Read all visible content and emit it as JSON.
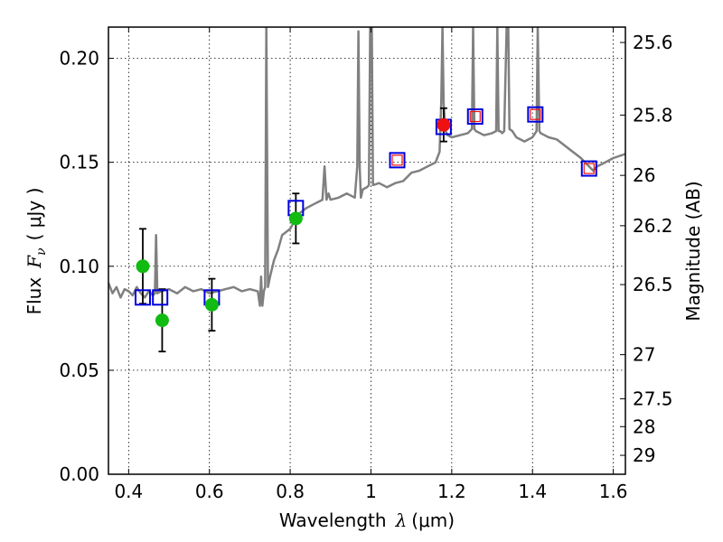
{
  "chart_data": {
    "type": "scatter",
    "xlabel_prefix": "Wavelength",
    "xlabel_symbol": "λ",
    "xlabel_unit": "(μm)",
    "ylabel_prefix": "Flux",
    "ylabel_symbol": "F",
    "ylabel_sub": "ν",
    "ylabel_unit": "( μJy )",
    "y2label": "Magnitude (AB)",
    "xlim": [
      0.35,
      1.63
    ],
    "ylim": [
      0.0,
      0.215
    ],
    "grid": true,
    "x_ticks": [
      0.4,
      0.6,
      0.8,
      1.0,
      1.2,
      1.4,
      1.6
    ],
    "x_tick_labels": [
      "0.4",
      "0.6",
      "0.8",
      "1",
      "1.2",
      "1.4",
      "1.6"
    ],
    "y_ticks": [
      0.0,
      0.05,
      0.1,
      0.15,
      0.2
    ],
    "y_tick_labels": [
      "0.00",
      "0.05",
      "0.10",
      "0.15",
      "0.20"
    ],
    "y2_ticks": [
      {
        "label": "25.6",
        "flux": 0.2076
      },
      {
        "label": "25.8",
        "flux": 0.1727
      },
      {
        "label": "26",
        "flux": 0.1437
      },
      {
        "label": "26.2",
        "flux": 0.1195
      },
      {
        "label": "26.5",
        "flux": 0.0912
      },
      {
        "label": "27",
        "flux": 0.0575
      },
      {
        "label": "27.5",
        "flux": 0.0363
      },
      {
        "label": "28",
        "flux": 0.0229
      },
      {
        "label": "29",
        "flux": 0.0091
      }
    ],
    "series": [
      {
        "name": "SED model",
        "kind": "line",
        "color": "#808080",
        "x": [
          0.35,
          0.36,
          0.37,
          0.38,
          0.39,
          0.4,
          0.41,
          0.42,
          0.43,
          0.44,
          0.45,
          0.46,
          0.465,
          0.468,
          0.471,
          0.48,
          0.5,
          0.52,
          0.54,
          0.56,
          0.58,
          0.6,
          0.62,
          0.64,
          0.66,
          0.68,
          0.7,
          0.72,
          0.725,
          0.728,
          0.731,
          0.735,
          0.738,
          0.741,
          0.745,
          0.75,
          0.76,
          0.77,
          0.78,
          0.8,
          0.82,
          0.84,
          0.86,
          0.88,
          0.885,
          0.89,
          0.895,
          0.9,
          0.92,
          0.94,
          0.96,
          0.966,
          0.969,
          0.972,
          0.975,
          0.98,
          0.99,
          0.995,
          0.998,
          1.0,
          1.002,
          1.005,
          1.02,
          1.04,
          1.06,
          1.08,
          1.1,
          1.12,
          1.14,
          1.16,
          1.17,
          1.174,
          1.177,
          1.18,
          1.185,
          1.19,
          1.2,
          1.22,
          1.24,
          1.25,
          1.253,
          1.256,
          1.26,
          1.28,
          1.3,
          1.31,
          1.313,
          1.316,
          1.32,
          1.325,
          1.33,
          1.336,
          1.34,
          1.343,
          1.35,
          1.36,
          1.38,
          1.4,
          1.41,
          1.413,
          1.417,
          1.42,
          1.43,
          1.44,
          1.46,
          1.48,
          1.5,
          1.52,
          1.54,
          1.55,
          1.56,
          1.58,
          1.6,
          1.63
        ],
        "y": [
          0.092,
          0.087,
          0.09,
          0.085,
          0.089,
          0.088,
          0.086,
          0.09,
          0.087,
          0.085,
          0.088,
          0.086,
          0.087,
          0.115,
          0.087,
          0.088,
          0.089,
          0.087,
          0.09,
          0.088,
          0.089,
          0.087,
          0.088,
          0.089,
          0.09,
          0.088,
          0.089,
          0.088,
          0.081,
          0.095,
          0.081,
          0.088,
          0.09,
          0.215,
          0.09,
          0.095,
          0.103,
          0.108,
          0.115,
          0.118,
          0.125,
          0.128,
          0.13,
          0.132,
          0.148,
          0.132,
          0.135,
          0.132,
          0.133,
          0.135,
          0.133,
          0.148,
          0.213,
          0.148,
          0.133,
          0.137,
          0.138,
          0.139,
          0.215,
          0.215,
          0.215,
          0.139,
          0.14,
          0.138,
          0.14,
          0.141,
          0.145,
          0.146,
          0.148,
          0.15,
          0.155,
          0.178,
          0.215,
          0.178,
          0.165,
          0.163,
          0.162,
          0.163,
          0.164,
          0.166,
          0.215,
          0.166,
          0.165,
          0.163,
          0.164,
          0.165,
          0.215,
          0.165,
          0.165,
          0.164,
          0.165,
          0.215,
          0.215,
          0.166,
          0.165,
          0.162,
          0.16,
          0.162,
          0.165,
          0.215,
          0.165,
          0.164,
          0.163,
          0.162,
          0.161,
          0.158,
          0.155,
          0.152,
          0.148,
          0.146,
          0.148,
          0.15,
          0.152,
          0.154
        ]
      },
      {
        "name": "Photometry (green)",
        "kind": "points",
        "color": "#11bb11",
        "x": [
          0.435,
          0.483,
          0.606,
          0.814
        ],
        "y": [
          0.1,
          0.074,
          0.0815,
          0.123
        ],
        "yerr": [
          0.018,
          0.015,
          0.0125,
          0.012
        ]
      },
      {
        "name": "Photometry (red)",
        "kind": "points",
        "color": "#ee1111",
        "x": [
          1.18
        ],
        "y": [
          0.168
        ],
        "yerr": [
          0.008
        ]
      },
      {
        "name": "Model bandpass (blue squares)",
        "kind": "open-squares",
        "color": "#0000dd",
        "x": [
          0.435,
          0.478,
          0.606,
          0.814,
          1.065,
          1.18,
          1.258,
          1.407,
          1.54
        ],
        "y": [
          0.085,
          0.085,
          0.085,
          0.128,
          0.151,
          0.167,
          0.172,
          0.173,
          0.147
        ]
      },
      {
        "name": "Model bandpass (red squares)",
        "kind": "open-squares",
        "color": "#ee1111",
        "x": [
          1.065,
          1.258,
          1.407,
          1.54
        ],
        "y": [
          0.151,
          0.172,
          0.173,
          0.147
        ]
      }
    ]
  }
}
